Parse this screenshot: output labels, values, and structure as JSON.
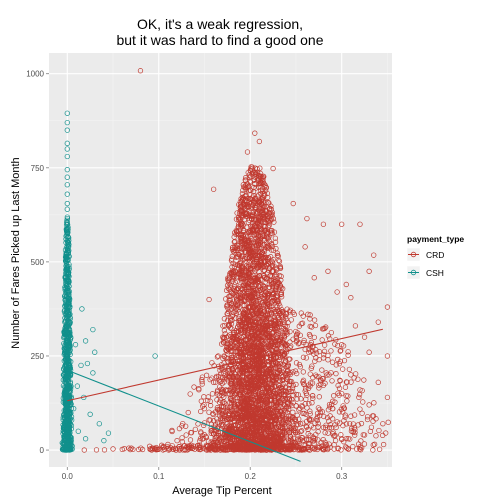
{
  "chart_data": {
    "type": "scatter",
    "title_lines": [
      "OK, it's a weak regression,",
      "but it was hard to find a good one"
    ],
    "xlabel": "Average Tip Percent",
    "ylabel": "Number of Fares Picked up Last Month",
    "xlim": [
      -0.02,
      0.355
    ],
    "ylim": [
      -45,
      1055
    ],
    "x_ticks": [
      0.0,
      0.1,
      0.2,
      0.3
    ],
    "x_tick_labels": [
      "0.0",
      "0.1",
      "0.2",
      "0.3"
    ],
    "y_ticks": [
      0,
      250,
      500,
      750,
      1000
    ],
    "y_tick_labels": [
      "0",
      "250",
      "500",
      "750",
      "1000"
    ],
    "grid": true,
    "panel_background": "#ebebeb",
    "grid_color": "#ffffff",
    "marker": "open-circle",
    "legend": {
      "title": "payment_type",
      "position": "right",
      "entries": [
        {
          "label": "CRD",
          "color": "#c0392f"
        },
        {
          "label": "CSH",
          "color": "#11908c"
        }
      ]
    },
    "series": [
      {
        "name": "CRD",
        "color": "#c0392f",
        "regression_line": [
          [
            0.0,
            131
          ],
          [
            0.345,
            321
          ]
        ],
        "points": [
          [
            0.08,
            1008
          ],
          [
            0.205,
            842
          ],
          [
            0.21,
            820
          ],
          [
            0.197,
            792
          ],
          [
            0.225,
            748
          ],
          [
            0.16,
            693
          ],
          [
            0.247,
            655
          ],
          [
            0.262,
            615
          ],
          [
            0.28,
            600
          ],
          [
            0.3,
            600
          ],
          [
            0.32,
            600
          ],
          [
            0.26,
            540
          ],
          [
            0.335,
            518
          ],
          [
            0.33,
            475
          ],
          [
            0.285,
            475
          ],
          [
            0.27,
            458
          ],
          [
            0.305,
            440
          ],
          [
            0.295,
            420
          ],
          [
            0.31,
            405
          ],
          [
            0.35,
            380
          ],
          [
            0.34,
            340
          ],
          [
            0.315,
            330
          ],
          [
            0.325,
            300
          ],
          [
            0.3,
            280
          ],
          [
            0.33,
            260
          ],
          [
            0.35,
            250
          ],
          [
            0.285,
            240
          ],
          [
            0.31,
            200
          ],
          [
            0.34,
            180
          ],
          [
            0.32,
            160
          ],
          [
            0.3,
            150
          ],
          [
            0.35,
            140
          ],
          [
            0.33,
            120
          ],
          [
            0.29,
            110
          ],
          [
            0.31,
            90
          ],
          [
            0.345,
            70
          ],
          [
            0.28,
            60
          ],
          [
            0.325,
            40
          ],
          [
            0.36,
            20
          ],
          [
            0.3,
            30
          ],
          [
            0.155,
            400
          ],
          [
            0.17,
            300
          ],
          [
            0.165,
            250
          ],
          [
            0.16,
            180
          ],
          [
            0.15,
            110
          ],
          [
            0.155,
            80
          ],
          [
            0.14,
            55
          ],
          [
            0.13,
            40
          ],
          [
            0.12,
            25
          ],
          [
            0.11,
            15
          ],
          [
            0.09,
            10
          ],
          [
            0.07,
            5
          ],
          [
            0.05,
            3
          ],
          [
            0.1,
            2
          ],
          [
            0.125,
            5
          ]
        ],
        "clusters": [
          {
            "x_center": 0.205,
            "x_spread": 0.018,
            "y_max": 760,
            "n": 3200
          },
          {
            "x_center": 0.235,
            "x_spread": 0.05,
            "y_max": 380,
            "n": 900
          },
          {
            "x_center": 0.18,
            "x_spread": 0.06,
            "y_max": 14,
            "n": 220
          }
        ]
      },
      {
        "name": "CSH",
        "color": "#11908c",
        "regression_line": [
          [
            0.0,
            212
          ],
          [
            0.255,
            -30
          ]
        ],
        "points": [
          [
            0.0,
            895
          ],
          [
            0.0,
            870
          ],
          [
            0.0,
            850
          ],
          [
            0.0,
            815
          ],
          [
            0.0,
            800
          ],
          [
            0.0,
            780
          ],
          [
            0.0,
            745
          ],
          [
            0.0,
            725
          ],
          [
            0.0,
            705
          ],
          [
            0.0,
            680
          ],
          [
            0.0,
            655
          ],
          [
            0.0,
            640
          ],
          [
            0.016,
            375
          ],
          [
            0.028,
            320
          ],
          [
            0.02,
            290
          ],
          [
            0.009,
            280
          ],
          [
            0.03,
            260
          ],
          [
            0.096,
            250
          ],
          [
            0.022,
            230
          ],
          [
            0.015,
            225
          ],
          [
            0.028,
            205
          ],
          [
            0.011,
            170
          ],
          [
            0.018,
            140
          ],
          [
            0.007,
            110
          ],
          [
            0.025,
            95
          ],
          [
            0.035,
            70
          ],
          [
            0.045,
            45
          ],
          [
            0.04,
            25
          ],
          [
            0.012,
            50
          ],
          [
            0.02,
            30
          ]
        ],
        "clusters": [
          {
            "x_center": 0.0,
            "x_spread": 0.002,
            "y_min": 0,
            "y_max": 620,
            "n": 900
          }
        ]
      }
    ]
  }
}
